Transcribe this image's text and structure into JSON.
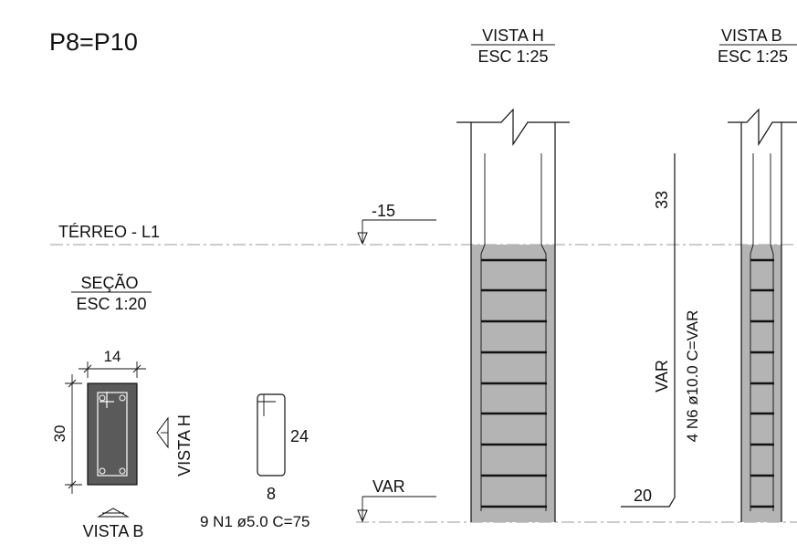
{
  "title": "P8=P10",
  "levels": {
    "ground": "TÉRREO - L1"
  },
  "views": {
    "h": {
      "title": "VISTA H",
      "scale": "ESC 1:25"
    },
    "b": {
      "title": "VISTA B",
      "scale": "ESC 1:25"
    }
  },
  "section": {
    "title": "SEÇÃO",
    "scale": "ESC 1:20",
    "width": "14",
    "height": "30",
    "view_h_label": "VISTA H",
    "view_b_label": "VISTA B"
  },
  "stirrup": {
    "side": "24",
    "base": "8",
    "callout": "9 N1 ø5.0 C=75"
  },
  "elevations": {
    "top": "-15",
    "bottom": "VAR"
  },
  "longitudinal": {
    "top_hook": "33",
    "length": "VAR",
    "callout": "4 N6 ø10.0 C=VAR",
    "bottom_hook": "20"
  },
  "colors": {
    "concrete": "#b4b4b4",
    "section_fill": "#5a5a5a",
    "ink": "#111111",
    "axis": "#999999"
  }
}
